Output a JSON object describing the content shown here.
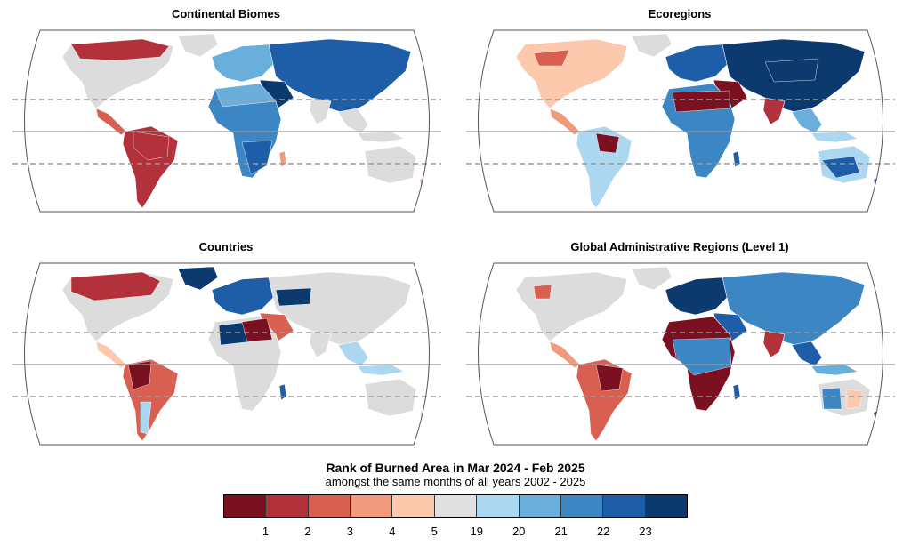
{
  "panels": [
    {
      "title": "Continental Biomes"
    },
    {
      "title": "Ecoregions"
    },
    {
      "title": "Countries"
    },
    {
      "title": "Global Administrative Regions (Level 1)"
    }
  ],
  "legend": {
    "title": "Rank of Burned Area in Mar 2024 - Feb 2025",
    "subtitle": "amongst the same months of all years 2002 - 2025",
    "colors": [
      "#7b1020",
      "#b3313a",
      "#d95f50",
      "#f29a7c",
      "#fcc9ad",
      "#e0e0e0",
      "#abd7f1",
      "#6aafdc",
      "#3d86c4",
      "#1e5ea8",
      "#0d3a6e"
    ],
    "ticks": [
      "1",
      "2",
      "3",
      "4",
      "5",
      "19",
      "20",
      "21",
      "22",
      "23"
    ]
  },
  "palette": {
    "land": "#dcdcdc",
    "border": "#555555",
    "grid": "#999999"
  }
}
